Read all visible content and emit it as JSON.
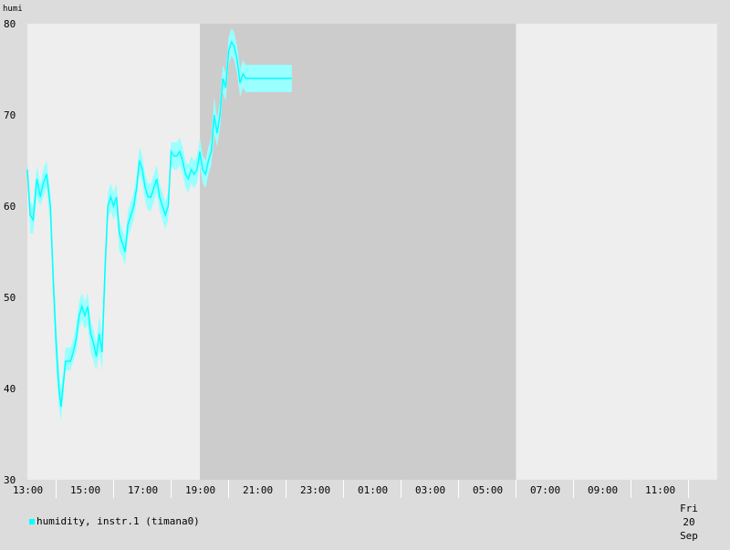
{
  "chart_data": {
    "type": "line",
    "ylabel": "humi",
    "ylim": [
      30,
      80
    ],
    "y_ticks": [
      "30",
      "40",
      "50",
      "60",
      "70",
      "80"
    ],
    "x_range_hours": [
      13,
      37
    ],
    "x_tick_labels": [
      "13:00",
      "15:00",
      "17:00",
      "19:00",
      "21:00",
      "23:00",
      "01:00",
      "03:00",
      "05:00",
      "07:00",
      "09:00",
      "11:00"
    ],
    "date_label": {
      "day": "Fri 20",
      "month": "Sep"
    },
    "night_shading": [
      19,
      30
    ],
    "series": [
      {
        "name": "humidity, instr.1 (timana0)",
        "color": "#00ffff",
        "x": [
          13.0,
          13.1,
          13.2,
          13.33,
          13.45,
          13.55,
          13.67,
          13.8,
          13.9,
          14.0,
          14.1,
          14.17,
          14.25,
          14.33,
          14.42,
          14.5,
          14.6,
          14.7,
          14.8,
          14.9,
          15.0,
          15.1,
          15.2,
          15.3,
          15.4,
          15.5,
          15.6,
          15.7,
          15.8,
          15.9,
          16.0,
          16.1,
          16.2,
          16.3,
          16.4,
          16.5,
          16.6,
          16.7,
          16.8,
          16.9,
          17.0,
          17.1,
          17.2,
          17.3,
          17.4,
          17.5,
          17.6,
          17.7,
          17.8,
          17.9,
          18.0,
          18.1,
          18.2,
          18.3,
          18.4,
          18.5,
          18.6,
          18.7,
          18.8,
          18.9,
          19.0,
          19.1,
          19.2,
          19.3,
          19.4,
          19.5,
          19.6,
          19.7,
          19.8,
          19.9,
          20.0,
          20.1,
          20.2,
          20.3,
          20.4,
          20.5,
          20.6,
          20.7,
          20.8,
          20.9,
          21.0,
          21.1,
          21.2,
          21.3,
          21.4,
          21.5,
          21.6,
          21.7,
          21.8,
          21.9,
          22.0,
          22.1,
          22.2
        ],
        "values": [
          64.0,
          59.0,
          58.5,
          63.0,
          61.0,
          62.5,
          63.5,
          60.0,
          52.0,
          45.0,
          40.0,
          38.0,
          40.5,
          43.0,
          43.0,
          43.0,
          44.0,
          45.5,
          48.0,
          49.0,
          48.0,
          49.0,
          46.0,
          45.0,
          43.5,
          46.0,
          44.0,
          53.0,
          60.0,
          61.0,
          60.0,
          61.0,
          57.0,
          56.0,
          55.0,
          58.0,
          59.0,
          60.0,
          62.0,
          65.0,
          64.0,
          62.0,
          61.0,
          61.0,
          62.0,
          63.0,
          61.0,
          60.0,
          59.0,
          60.0,
          66.0,
          65.5,
          65.5,
          66.0,
          65.0,
          63.5,
          63.0,
          64.0,
          63.5,
          64.0,
          66.0,
          64.0,
          63.5,
          65.0,
          66.0,
          70.0,
          68.0,
          70.0,
          74.0,
          73.0,
          77.0,
          78.0,
          77.5,
          76.0,
          73.5,
          74.5,
          74.0,
          74.0,
          74.0,
          74.0,
          74.0,
          74.0,
          74.0,
          74.0,
          74.0,
          74.0,
          74.0,
          74.0,
          74.0,
          74.0,
          74.0,
          74.0,
          74.0
        ],
        "min_values": [
          63.0,
          57.0,
          57.0,
          61.0,
          60.0,
          61.0,
          62.0,
          58.0,
          49.0,
          42.0,
          38.0,
          36.5,
          39.0,
          42.0,
          42.0,
          42.0,
          43.0,
          44.0,
          46.5,
          47.5,
          46.5,
          47.0,
          44.0,
          43.0,
          42.0,
          44.0,
          42.0,
          50.0,
          58.5,
          59.5,
          58.5,
          59.5,
          55.0,
          54.5,
          53.5,
          56.5,
          57.5,
          58.5,
          60.5,
          63.5,
          62.5,
          60.5,
          59.5,
          59.5,
          60.5,
          61.5,
          59.5,
          58.5,
          57.5,
          58.5,
          64.5,
          64.0,
          64.0,
          64.5,
          63.5,
          62.0,
          61.5,
          62.5,
          62.0,
          62.5,
          64.5,
          62.5,
          62.0,
          63.5,
          64.5,
          68.0,
          66.5,
          68.5,
          72.5,
          71.5,
          75.5,
          76.5,
          76.0,
          74.5,
          72.0,
          73.0,
          72.5,
          72.5,
          72.5,
          72.5,
          72.5,
          72.5,
          72.5,
          72.5,
          72.5,
          72.5,
          72.5,
          72.5,
          72.5,
          72.5,
          72.5,
          72.5,
          72.5
        ],
        "max_values": [
          65.0,
          60.5,
          60.0,
          64.5,
          62.5,
          64.0,
          65.0,
          61.5,
          54.0,
          47.0,
          42.0,
          40.0,
          42.0,
          44.5,
          44.5,
          44.5,
          45.5,
          47.0,
          49.5,
          50.5,
          49.5,
          50.5,
          47.5,
          46.5,
          45.0,
          48.0,
          46.0,
          55.0,
          61.5,
          62.5,
          61.5,
          62.5,
          58.5,
          57.5,
          56.5,
          59.5,
          60.5,
          61.5,
          63.5,
          66.5,
          65.5,
          63.5,
          62.5,
          62.5,
          63.5,
          64.5,
          62.5,
          61.5,
          60.5,
          61.5,
          67.0,
          67.0,
          67.0,
          67.5,
          66.5,
          65.0,
          64.5,
          65.5,
          65.0,
          65.5,
          67.5,
          65.5,
          65.0,
          66.5,
          67.5,
          72.0,
          69.5,
          71.5,
          75.5,
          74.5,
          78.5,
          79.5,
          79.0,
          77.5,
          75.0,
          76.0,
          75.5,
          75.5,
          75.5,
          75.5,
          75.5,
          75.5,
          75.5,
          75.5,
          75.5,
          75.5,
          75.5,
          75.5,
          75.5,
          75.5,
          75.5,
          75.5,
          75.5
        ]
      }
    ],
    "colors": {
      "page_background": "#dcdcdc",
      "plot_background": "#eeeeee",
      "night_background": "#cccccc",
      "series_line": "#00ffff",
      "series_band": "#99ffff"
    }
  }
}
